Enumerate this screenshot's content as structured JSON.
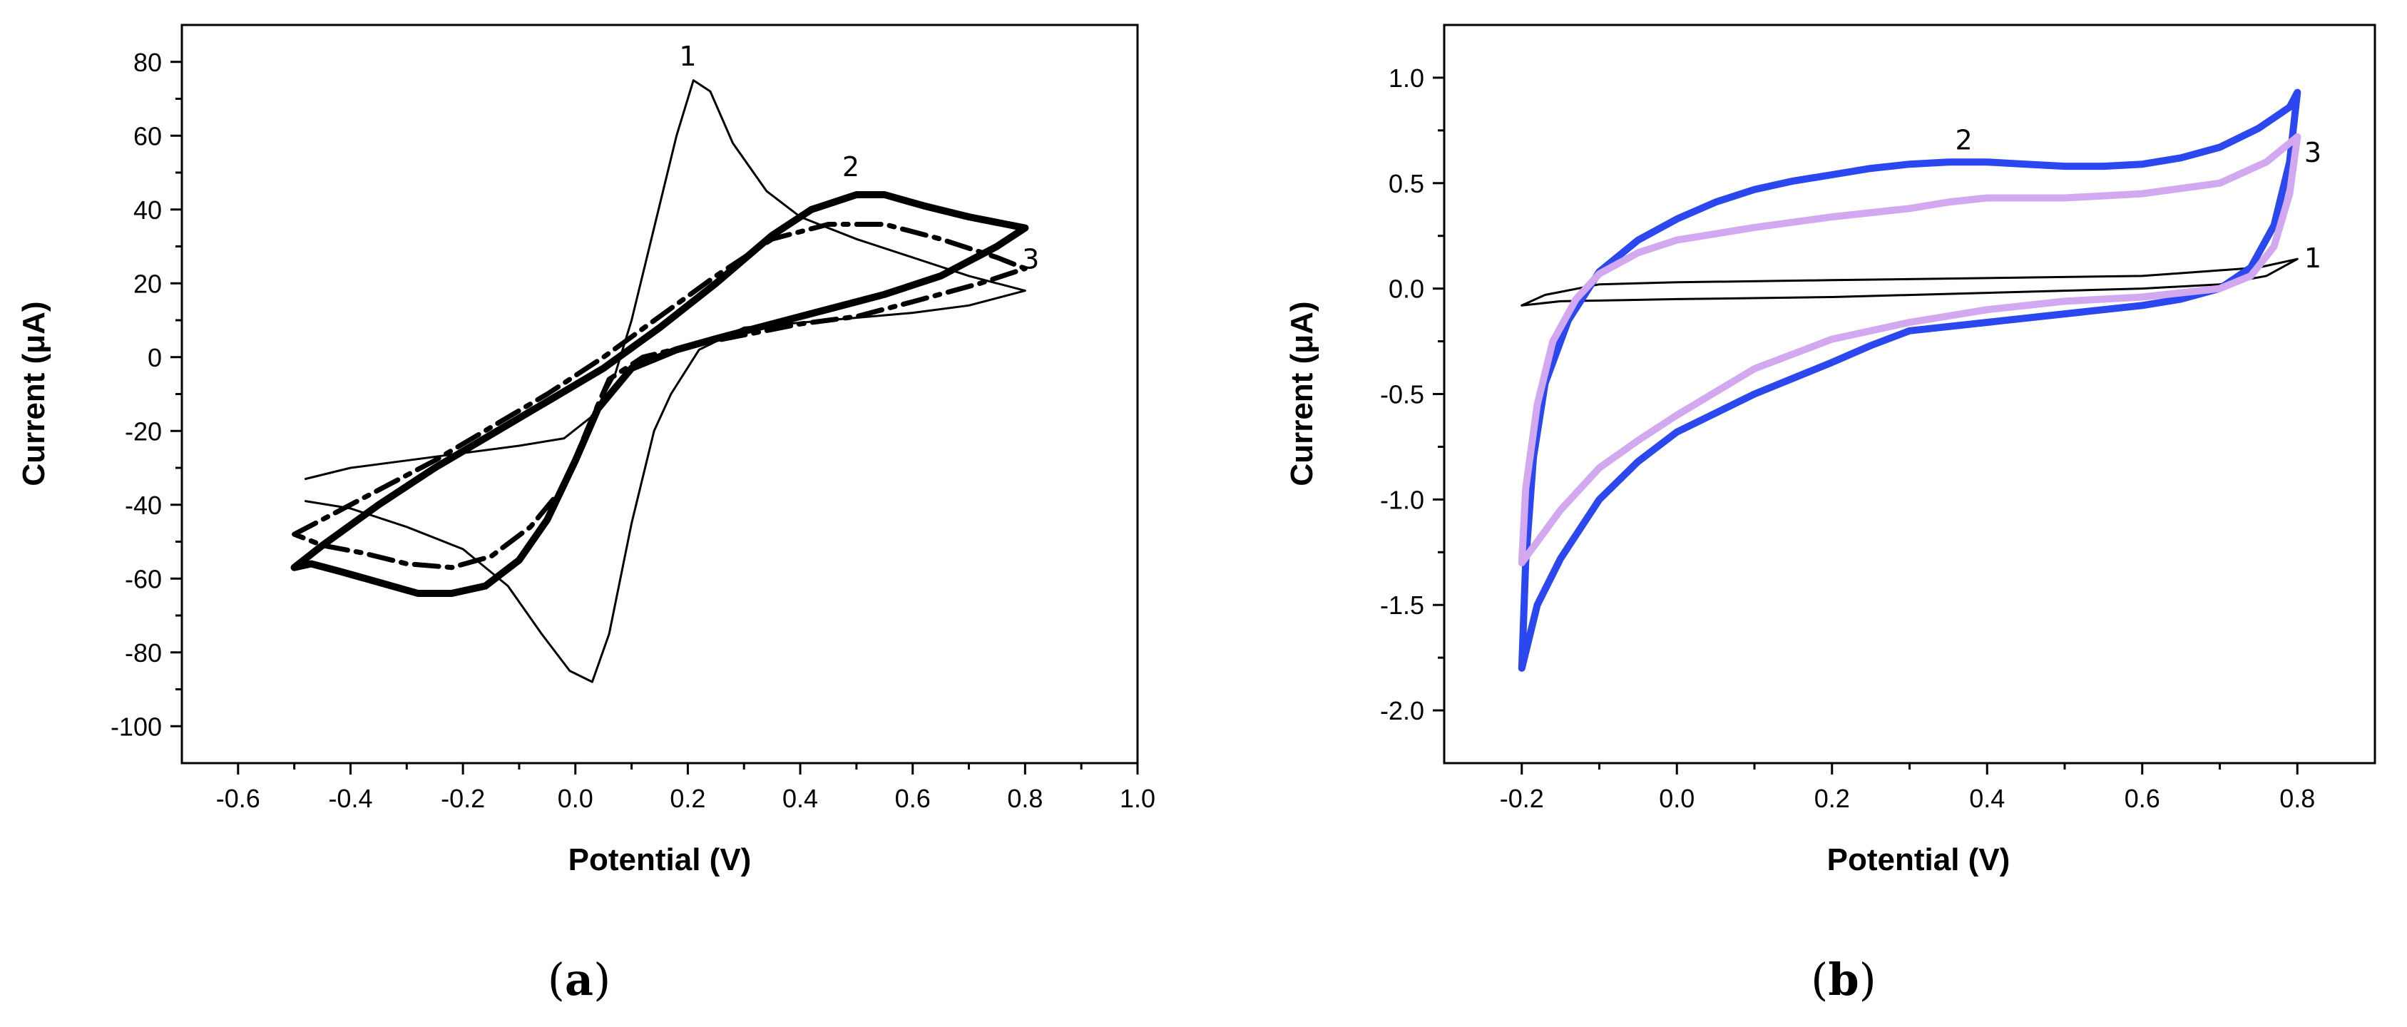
{
  "chart_data": [
    {
      "type": "line",
      "panel": "(a)",
      "panel_paren_open": "(",
      "panel_letter": "a",
      "panel_paren_close": ")",
      "title": "",
      "xlabel": "Potential (V)",
      "ylabel": "Current (μA)",
      "xlim": [
        -0.7,
        1.0
      ],
      "ylim": [
        -110,
        90
      ],
      "xticks": [
        -0.6,
        -0.4,
        -0.2,
        0.0,
        0.2,
        0.4,
        0.6,
        0.8,
        1.0
      ],
      "xtick_labels": [
        "-0.6",
        "-0.4",
        "-0.2",
        "0.0",
        "0.2",
        "0.4",
        "0.6",
        "0.8",
        "1.0"
      ],
      "yticks": [
        -100,
        -80,
        -60,
        -40,
        -20,
        0,
        20,
        40,
        60,
        80
      ],
      "ytick_labels": [
        "-100",
        "-80",
        "-60",
        "-40",
        "-20",
        "0",
        "20",
        "40",
        "60",
        "80"
      ],
      "series": [
        {
          "name": "1",
          "color": "#000000",
          "style": "solid-thin",
          "points": [
            [
              -0.48,
              -33
            ],
            [
              -0.4,
              -30
            ],
            [
              -0.3,
              -28
            ],
            [
              -0.2,
              -26
            ],
            [
              -0.1,
              -24
            ],
            [
              -0.02,
              -22
            ],
            [
              0.03,
              -16
            ],
            [
              0.07,
              -5
            ],
            [
              0.1,
              10
            ],
            [
              0.14,
              35
            ],
            [
              0.18,
              60
            ],
            [
              0.21,
              75
            ],
            [
              0.24,
              72
            ],
            [
              0.28,
              58
            ],
            [
              0.34,
              45
            ],
            [
              0.4,
              38
            ],
            [
              0.5,
              32
            ],
            [
              0.6,
              27
            ],
            [
              0.7,
              22
            ],
            [
              0.8,
              18
            ],
            [
              0.7,
              14
            ],
            [
              0.6,
              12
            ],
            [
              0.45,
              10
            ],
            [
              0.3,
              8
            ],
            [
              0.22,
              2
            ],
            [
              0.17,
              -10
            ],
            [
              0.14,
              -20
            ],
            [
              0.1,
              -45
            ],
            [
              0.06,
              -75
            ],
            [
              0.03,
              -88
            ],
            [
              -0.01,
              -85
            ],
            [
              -0.06,
              -75
            ],
            [
              -0.12,
              -62
            ],
            [
              -0.2,
              -52
            ],
            [
              -0.3,
              -46
            ],
            [
              -0.4,
              -41
            ],
            [
              -0.48,
              -39
            ]
          ],
          "label_at": [
            0.2,
            79
          ]
        },
        {
          "name": "2",
          "color": "#000000",
          "style": "solid-thick",
          "points": [
            [
              -0.5,
              -57
            ],
            [
              -0.45,
              -51
            ],
            [
              -0.35,
              -40
            ],
            [
              -0.25,
              -30
            ],
            [
              -0.15,
              -21
            ],
            [
              -0.05,
              -12
            ],
            [
              0.05,
              -3
            ],
            [
              0.15,
              8
            ],
            [
              0.25,
              20
            ],
            [
              0.35,
              33
            ],
            [
              0.42,
              40
            ],
            [
              0.5,
              44
            ],
            [
              0.55,
              44
            ],
            [
              0.62,
              41
            ],
            [
              0.7,
              38
            ],
            [
              0.8,
              35
            ],
            [
              0.75,
              30
            ],
            [
              0.65,
              22
            ],
            [
              0.55,
              17
            ],
            [
              0.45,
              13
            ],
            [
              0.35,
              9
            ],
            [
              0.25,
              5
            ],
            [
              0.18,
              2
            ],
            [
              0.1,
              -3
            ],
            [
              0.04,
              -14
            ],
            [
              0.0,
              -28
            ],
            [
              -0.05,
              -44
            ],
            [
              -0.1,
              -55
            ],
            [
              -0.16,
              -62
            ],
            [
              -0.22,
              -64
            ],
            [
              -0.28,
              -64
            ],
            [
              -0.35,
              -61
            ],
            [
              -0.42,
              -58
            ],
            [
              -0.47,
              -56
            ],
            [
              -0.5,
              -57
            ]
          ],
          "label_at": [
            0.49,
            49
          ]
        },
        {
          "name": "3",
          "color": "#000000",
          "style": "dash-dot",
          "points": [
            [
              -0.5,
              -48
            ],
            [
              -0.45,
              -44
            ],
            [
              -0.35,
              -36
            ],
            [
              -0.25,
              -28
            ],
            [
              -0.15,
              -19
            ],
            [
              -0.05,
              -10
            ],
            [
              0.05,
              0
            ],
            [
              0.15,
              11
            ],
            [
              0.25,
              22
            ],
            [
              0.35,
              32
            ],
            [
              0.45,
              36
            ],
            [
              0.55,
              36
            ],
            [
              0.65,
              32
            ],
            [
              0.75,
              27
            ],
            [
              0.8,
              24
            ],
            [
              0.72,
              20
            ],
            [
              0.6,
              15
            ],
            [
              0.5,
              11
            ],
            [
              0.4,
              9
            ],
            [
              0.3,
              6
            ],
            [
              0.2,
              3
            ],
            [
              0.12,
              0
            ],
            [
              0.06,
              -6
            ],
            [
              0.02,
              -20
            ],
            [
              -0.02,
              -35
            ],
            [
              -0.08,
              -46
            ],
            [
              -0.15,
              -54
            ],
            [
              -0.22,
              -57
            ],
            [
              -0.3,
              -56
            ],
            [
              -0.38,
              -53
            ],
            [
              -0.45,
              -51
            ],
            [
              -0.5,
              -48
            ]
          ],
          "label_at": [
            0.81,
            24
          ]
        }
      ]
    },
    {
      "type": "line",
      "panel": "(b)",
      "panel_paren_open": "(",
      "panel_letter": "b",
      "panel_paren_close": ")",
      "title": "",
      "xlabel": "Potential (V)",
      "ylabel": "Current (μA)",
      "xlim": [
        -0.3,
        0.9
      ],
      "ylim": [
        -2.25,
        1.25
      ],
      "xticks": [
        -0.2,
        0.0,
        0.2,
        0.4,
        0.6,
        0.8
      ],
      "xtick_labels": [
        "-0.2",
        "0.0",
        "0.2",
        "0.4",
        "0.6",
        "0.8"
      ],
      "yticks": [
        -2.0,
        -1.5,
        -1.0,
        -0.5,
        0.0,
        0.5,
        1.0
      ],
      "ytick_labels": [
        "-2.0",
        "-1.5",
        "-1.0",
        "-0.5",
        "0.0",
        "0.5",
        "1.0"
      ],
      "series": [
        {
          "name": "1",
          "color": "#000000",
          "style": "solid-thin",
          "points": [
            [
              -0.2,
              -0.08
            ],
            [
              -0.17,
              -0.03
            ],
            [
              -0.1,
              0.02
            ],
            [
              0.0,
              0.03
            ],
            [
              0.2,
              0.04
            ],
            [
              0.4,
              0.05
            ],
            [
              0.6,
              0.06
            ],
            [
              0.75,
              0.1
            ],
            [
              0.8,
              0.14
            ],
            [
              0.76,
              0.06
            ],
            [
              0.7,
              0.02
            ],
            [
              0.6,
              0.0
            ],
            [
              0.4,
              -0.02
            ],
            [
              0.2,
              -0.04
            ],
            [
              0.0,
              -0.05
            ],
            [
              -0.15,
              -0.06
            ],
            [
              -0.2,
              -0.08
            ]
          ],
          "label_at": [
            0.82,
            0.1
          ]
        },
        {
          "name": "2",
          "color": "#2a47f0",
          "style": "solid-thick",
          "points": [
            [
              -0.2,
              -1.8
            ],
            [
              -0.195,
              -1.3
            ],
            [
              -0.185,
              -0.8
            ],
            [
              -0.17,
              -0.45
            ],
            [
              -0.14,
              -0.15
            ],
            [
              -0.1,
              0.08
            ],
            [
              -0.05,
              0.23
            ],
            [
              0.0,
              0.33
            ],
            [
              0.05,
              0.41
            ],
            [
              0.1,
              0.47
            ],
            [
              0.15,
              0.51
            ],
            [
              0.2,
              0.54
            ],
            [
              0.25,
              0.57
            ],
            [
              0.3,
              0.59
            ],
            [
              0.35,
              0.6
            ],
            [
              0.4,
              0.6
            ],
            [
              0.45,
              0.59
            ],
            [
              0.5,
              0.58
            ],
            [
              0.55,
              0.58
            ],
            [
              0.6,
              0.59
            ],
            [
              0.65,
              0.62
            ],
            [
              0.7,
              0.67
            ],
            [
              0.75,
              0.76
            ],
            [
              0.79,
              0.86
            ],
            [
              0.8,
              0.93
            ],
            [
              0.79,
              0.6
            ],
            [
              0.77,
              0.3
            ],
            [
              0.74,
              0.1
            ],
            [
              0.7,
              0.0
            ],
            [
              0.65,
              -0.05
            ],
            [
              0.6,
              -0.08
            ],
            [
              0.5,
              -0.12
            ],
            [
              0.4,
              -0.16
            ],
            [
              0.3,
              -0.2
            ],
            [
              0.25,
              -0.27
            ],
            [
              0.2,
              -0.35
            ],
            [
              0.1,
              -0.5
            ],
            [
              0.0,
              -0.68
            ],
            [
              -0.05,
              -0.82
            ],
            [
              -0.1,
              -1.0
            ],
            [
              -0.15,
              -1.28
            ],
            [
              -0.18,
              -1.5
            ],
            [
              -0.2,
              -1.8
            ]
          ],
          "label_at": [
            0.37,
            0.66
          ]
        },
        {
          "name": "3",
          "color": "#d2a8f0",
          "style": "solid-thick",
          "points": [
            [
              -0.2,
              -1.3
            ],
            [
              -0.195,
              -0.95
            ],
            [
              -0.18,
              -0.55
            ],
            [
              -0.16,
              -0.25
            ],
            [
              -0.13,
              -0.05
            ],
            [
              -0.1,
              0.07
            ],
            [
              -0.05,
              0.17
            ],
            [
              0.0,
              0.23
            ],
            [
              0.1,
              0.29
            ],
            [
              0.2,
              0.34
            ],
            [
              0.3,
              0.38
            ],
            [
              0.35,
              0.41
            ],
            [
              0.4,
              0.43
            ],
            [
              0.5,
              0.43
            ],
            [
              0.6,
              0.45
            ],
            [
              0.7,
              0.5
            ],
            [
              0.76,
              0.6
            ],
            [
              0.8,
              0.72
            ],
            [
              0.79,
              0.45
            ],
            [
              0.77,
              0.2
            ],
            [
              0.74,
              0.06
            ],
            [
              0.7,
              0.0
            ],
            [
              0.6,
              -0.04
            ],
            [
              0.5,
              -0.06
            ],
            [
              0.4,
              -0.1
            ],
            [
              0.3,
              -0.16
            ],
            [
              0.2,
              -0.24
            ],
            [
              0.1,
              -0.38
            ],
            [
              0.0,
              -0.6
            ],
            [
              -0.05,
              -0.72
            ],
            [
              -0.1,
              -0.85
            ],
            [
              -0.15,
              -1.05
            ],
            [
              -0.2,
              -1.3
            ]
          ],
          "label_at": [
            0.82,
            0.6
          ]
        }
      ]
    }
  ]
}
